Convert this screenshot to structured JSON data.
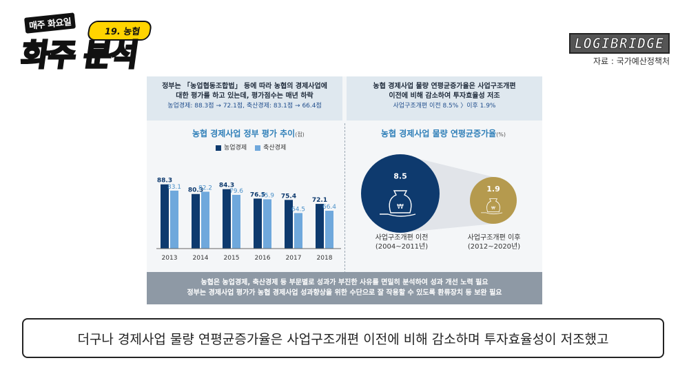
{
  "header": {
    "logo_top": "매주 화요일",
    "logo_tag": "19. 농협",
    "logo_main_1": "화",
    "logo_main_2": "주 분석",
    "brand": "LOGIBRIDGE",
    "source": "자료 : 국가예산정책처"
  },
  "summary_left": {
    "line1": "정부는 「농업협동조합법」 등에 따라 농협의 경제사업에",
    "line2": "대한 평가를 하고 있는데, 평가점수는 매년 하락",
    "line3": "농업경제: 88.3점 → 72.1점, 축산경제: 83.1점 → 66.4점"
  },
  "summary_right": {
    "line1": "농협 경제사업 물량 연평균증가율은 사업구조개편",
    "line2": "이전에 비해 감소하여 투자효율성 저조",
    "line3": "사업구조개편 이전 8.5% 〉이후 1.9%"
  },
  "chart_data": [
    {
      "type": "bar",
      "title": "농협 경제사업 정부 평가 추이",
      "unit": "(점)",
      "categories": [
        "2013",
        "2014",
        "2015",
        "2016",
        "2017",
        "2018"
      ],
      "series": [
        {
          "name": "농업경제",
          "color": "#0e3a6e",
          "values": [
            88.3,
            80.3,
            84.3,
            76.5,
            75.4,
            72.1
          ]
        },
        {
          "name": "축산경제",
          "color": "#6fa8dc",
          "values": [
            83.1,
            82.2,
            79.6,
            75.9,
            64.5,
            66.4
          ]
        }
      ],
      "ylim": [
        0,
        100
      ]
    },
    {
      "type": "bubble",
      "title": "농협 경제사업 물량 연평균증가율",
      "unit": "(%)",
      "points": [
        {
          "label": "사업구조개편 이전",
          "period": "(2004~2011년)",
          "value": 8.5,
          "color": "#0e3a6e"
        },
        {
          "label": "사업구조개편 이후",
          "period": "(2012~2020년)",
          "value": 1.9,
          "color": "#b59a4e"
        }
      ]
    }
  ],
  "bottom": {
    "line1": "농협은 농업경제, 축산경제 등 부문별로 성과가 부진한 사유를 면밀히 분석하여 성과 개선 노력 필요",
    "line2": "정부는 경제사업 평가가 농협 경제사업 성과향상을 위한 수단으로 잘 작용할 수 있도록 환류장치 등 보완 필요"
  },
  "subtitle": "더구나 경제사업 물량 연평균증가율은 사업구조개편 이전에 비해 감소하며 투자효율성이 저조했고"
}
